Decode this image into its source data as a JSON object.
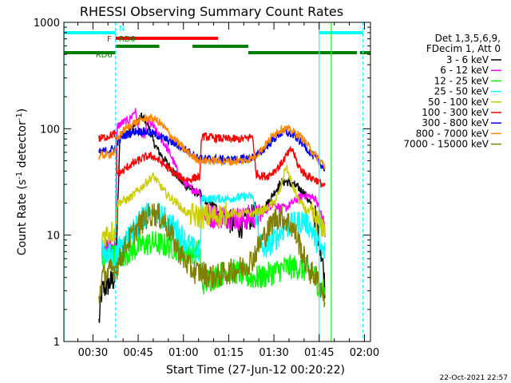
{
  "chart_data": {
    "type": "line",
    "title": "RHESSI Observing Summary Count Rates",
    "xlabel": "Start Time (27-Jun-12 00:20:22)",
    "ylabel_main": "Count Rate (s",
    "ylabel_sup1": "-1",
    "ylabel_mid": " detector",
    "ylabel_sup2": "-1",
    "ylabel_end": ")",
    "y_scale": "log",
    "ylim": [
      1,
      1000
    ],
    "xlim_minutes": [
      20.37,
      122.0
    ],
    "x_ticks": [
      {
        "label": "00:30",
        "minutes": 30
      },
      {
        "label": "00:45",
        "minutes": 45
      },
      {
        "label": "01:00",
        "minutes": 60
      },
      {
        "label": "01:15",
        "minutes": 75
      },
      {
        "label": "01:30",
        "minutes": 90
      },
      {
        "label": "01:45",
        "minutes": 105
      },
      {
        "label": "02:00",
        "minutes": 120
      }
    ],
    "y_ticks": [
      {
        "label": "1",
        "value": 1
      },
      {
        "label": "10",
        "value": 10
      },
      {
        "label": "100",
        "value": 100
      },
      {
        "label": "1000",
        "value": 1000
      }
    ],
    "legend_title_1": "Det 1,3,5,6,9,",
    "legend_title_2": "FDecim 1, Att 0",
    "legend_position": "right",
    "series": [
      {
        "name": "3 - 6 keV",
        "color": "#000000",
        "x": [
          32,
          33,
          37.5,
          39,
          42,
          44,
          46,
          48,
          50,
          52,
          54,
          56,
          58,
          60,
          62,
          64,
          65.5,
          66,
          70,
          74,
          76,
          79,
          81,
          83,
          85,
          88,
          90,
          92,
          94,
          96,
          98,
          100,
          102,
          104,
          106,
          107
        ],
        "y": [
          1.5,
          3,
          4,
          90,
          95,
          110,
          130,
          115,
          75,
          60,
          50,
          42,
          36,
          30,
          28,
          25,
          25,
          22,
          19,
          15,
          13,
          12,
          14,
          15,
          17,
          20,
          25,
          30,
          32,
          30,
          28,
          25,
          20,
          14,
          6,
          3
        ]
      },
      {
        "name": "6 - 12 keV",
        "color": "#ff00ff",
        "x": [
          33,
          37.5,
          38,
          40,
          42,
          44,
          45,
          46,
          47,
          48,
          50,
          52,
          54,
          56,
          58,
          60,
          62,
          64,
          65.5,
          66,
          70,
          75,
          80,
          82,
          85,
          88,
          90,
          92,
          94,
          96,
          98,
          100,
          102,
          104,
          106,
          107
        ],
        "y": [
          7,
          8,
          105,
          115,
          120,
          150,
          100,
          90,
          80,
          120,
          105,
          85,
          70,
          55,
          40,
          32,
          28,
          26,
          26,
          16,
          15,
          15,
          14,
          15,
          15,
          18,
          20,
          18,
          18,
          20,
          22,
          24,
          23,
          22,
          14,
          12
        ]
      },
      {
        "name": "12 - 25 keV",
        "color": "#00ff00",
        "x": [
          33,
          37.5,
          38,
          42,
          46,
          50,
          54,
          58,
          62,
          64,
          65.5,
          66,
          70,
          74,
          78,
          82,
          86,
          90,
          94,
          98,
          102,
          104,
          105,
          107
        ],
        "y": [
          6,
          6.5,
          6,
          7,
          8,
          8.5,
          8,
          7.5,
          7,
          7,
          7,
          3.5,
          4,
          4.5,
          4.5,
          4,
          4,
          4.5,
          5,
          5,
          4.5,
          4,
          3.2,
          3
        ]
      },
      {
        "name": "25 - 50 keV",
        "color": "#00ffff",
        "x": [
          33,
          37.5,
          38,
          42,
          46,
          50,
          54,
          58,
          62,
          64,
          65.5,
          66,
          70,
          75,
          80,
          83,
          86,
          90,
          94,
          98,
          100,
          102,
          104,
          106,
          107
        ],
        "y": [
          7,
          6,
          7,
          10,
          14,
          17,
          14,
          11,
          8,
          7,
          7,
          22,
          22,
          22,
          23,
          23,
          7,
          9,
          12,
          13,
          14,
          12,
          9,
          7,
          7
        ]
      },
      {
        "name": "50 - 100 keV",
        "color": "#cccc00",
        "x": [
          33,
          37.5,
          38,
          42,
          46,
          48,
          50,
          52,
          54,
          56,
          58,
          60,
          62,
          64,
          65.5,
          66,
          70,
          75,
          80,
          83,
          86,
          88,
          90,
          92,
          94,
          96,
          98,
          100,
          102,
          104,
          106,
          107
        ],
        "y": [
          10,
          11,
          20,
          22,
          28,
          32,
          36,
          30,
          25,
          22,
          20,
          17,
          16,
          15,
          15,
          15,
          15,
          16,
          16,
          16,
          17,
          18,
          20,
          26,
          45,
          30,
          22,
          18,
          16,
          14,
          12,
          12
        ]
      },
      {
        "name": "100 - 300 keV",
        "color": "#ff0000",
        "x": [
          32,
          37.5,
          38,
          40,
          42,
          44,
          46,
          48,
          50,
          52,
          54,
          56,
          58,
          60,
          62,
          64,
          65.5,
          66,
          70,
          75,
          80,
          83,
          84,
          86,
          88,
          90,
          92,
          94,
          96,
          98,
          100,
          102,
          104,
          106,
          107
        ],
        "y": [
          80,
          90,
          38,
          40,
          45,
          48,
          52,
          55,
          55,
          50,
          45,
          40,
          36,
          34,
          33,
          35,
          35,
          85,
          82,
          80,
          80,
          85,
          38,
          36,
          36,
          40,
          45,
          55,
          65,
          45,
          38,
          35,
          33,
          30,
          28
        ]
      },
      {
        "name": "300 - 800 keV",
        "color": "#0000ff",
        "x": [
          32,
          37.5,
          38,
          40,
          42,
          44,
          46,
          48,
          50,
          52,
          54,
          56,
          58,
          60,
          62,
          64,
          66,
          70,
          75,
          80,
          83,
          85,
          88,
          90,
          92,
          94,
          96,
          98,
          100,
          102,
          104,
          106,
          107
        ],
        "y": [
          60,
          65,
          75,
          85,
          90,
          95,
          95,
          93,
          90,
          85,
          80,
          75,
          70,
          65,
          60,
          55,
          52,
          52,
          51,
          52,
          54,
          58,
          70,
          80,
          90,
          92,
          88,
          80,
          70,
          60,
          52,
          45,
          40
        ]
      },
      {
        "name": "800 - 7000 keV",
        "color": "#ff8800",
        "x": [
          32,
          37.5,
          38,
          40,
          42,
          44,
          46,
          48,
          50,
          52,
          54,
          56,
          58,
          60,
          62,
          64,
          66,
          70,
          75,
          80,
          83,
          85,
          88,
          90,
          92,
          94,
          96,
          98,
          100,
          102,
          104,
          106,
          107
        ],
        "y": [
          55,
          60,
          80,
          95,
          105,
          115,
          120,
          125,
          125,
          115,
          100,
          85,
          75,
          65,
          58,
          53,
          50,
          50,
          49,
          50,
          53,
          60,
          75,
          90,
          98,
          100,
          95,
          88,
          78,
          65,
          55,
          48,
          42
        ]
      },
      {
        "name": "7000 - 15000 keV",
        "color": "#808000",
        "x": [
          32,
          33,
          37.5,
          38,
          40,
          42,
          44,
          46,
          48,
          50,
          52,
          54,
          56,
          58,
          60,
          62,
          64,
          66,
          70,
          75,
          80,
          83,
          85,
          88,
          90,
          92,
          94,
          96,
          98,
          100,
          102,
          104,
          106,
          107
        ],
        "y": [
          2.5,
          4,
          5,
          5,
          7,
          9,
          11,
          13,
          15,
          16,
          15,
          13,
          10,
          7.5,
          6,
          5,
          4.5,
          4.5,
          4,
          4.5,
          5,
          6,
          8,
          11,
          14,
          15,
          14,
          12,
          9,
          6,
          4.5,
          4,
          3,
          2.5
        ]
      }
    ],
    "state_bars": [
      {
        "label": "N",
        "color": "#00ffff",
        "row": 1,
        "segments": [
          [
            20.4,
            37.5
          ],
          [
            105.0,
            119.5
          ]
        ]
      },
      {
        "label": "F",
        "color": "#ff0000",
        "row": 2,
        "segments": [
          [
            37.5,
            71.5
          ]
        ]
      },
      {
        "label": "RD0",
        "color": "#008000",
        "row": 3,
        "segments": [
          [
            37.5,
            52.0
          ],
          [
            63.0,
            81.5
          ]
        ]
      },
      {
        "label": "RD6",
        "color": "#008000",
        "row": 4,
        "segments": [
          [
            20.4,
            37.5
          ],
          [
            81.5,
            117.5
          ],
          [
            118.5,
            122.0
          ]
        ]
      }
    ],
    "verticals": [
      {
        "minutes": 20.4,
        "color": "#00ffff",
        "style": "solid"
      },
      {
        "minutes": 37.5,
        "color": "#00ffff",
        "style": "dashed"
      },
      {
        "minutes": 105.0,
        "color": "#00ffff",
        "style": "solid"
      },
      {
        "minutes": 119.5,
        "color": "#00ffff",
        "style": "dashed"
      },
      {
        "minutes": 109.0,
        "color": "#00ff00",
        "style": "solid"
      }
    ],
    "timestamp": "22-Oct-2021 22:57"
  }
}
